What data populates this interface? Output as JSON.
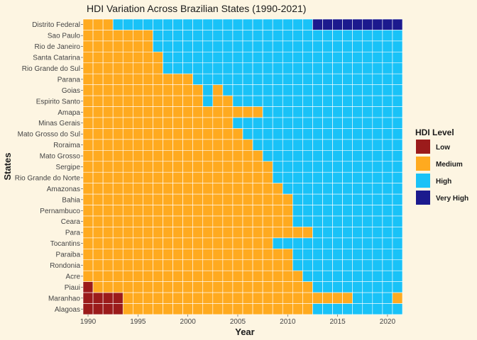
{
  "chart_data": {
    "type": "heatmap",
    "title": "HDI Variation Across Brazilian States (1990-2021)",
    "xlabel": "Year",
    "ylabel": "States",
    "x": [
      1990,
      1991,
      1992,
      1993,
      1994,
      1995,
      1996,
      1997,
      1998,
      1999,
      2000,
      2001,
      2002,
      2003,
      2004,
      2005,
      2006,
      2007,
      2008,
      2009,
      2010,
      2011,
      2012,
      2013,
      2014,
      2015,
      2016,
      2017,
      2018,
      2019,
      2020,
      2021
    ],
    "xticks": [
      1990,
      1995,
      2000,
      2005,
      2010,
      2015,
      2020
    ],
    "xlim": [
      1989.5,
      2021.5
    ],
    "grid": true,
    "legend": {
      "title": "HDI Level",
      "position": "right",
      "levels": [
        {
          "label": "Low",
          "color": "#9b1b1b"
        },
        {
          "label": "Medium",
          "color": "#ffaa1f"
        },
        {
          "label": "High",
          "color": "#19c2f7"
        },
        {
          "label": "Very High",
          "color": "#1c1a8e"
        }
      ]
    },
    "level_codes": {
      "L": "Low",
      "M": "Medium",
      "H": "High",
      "V": "Very High"
    },
    "states": [
      {
        "name": "Distrito Federal",
        "levels": "MMMHHHHHHHHHHHHHHHHHHHHVVVVVVVVV"
      },
      {
        "name": "Sao Paulo",
        "levels": "MMMMMMMHHHHHHHHHHHHHHHHHHHHHHHHH"
      },
      {
        "name": "Rio de Janeiro",
        "levels": "MMMMMMMHHHHHHHHHHHHHHHHHHHHHHHHH"
      },
      {
        "name": "Santa Catarina",
        "levels": "MMMMMMMMHHHHHHHHHHHHHHHHHHHHHHHH"
      },
      {
        "name": "Rio Grande do Sul",
        "levels": "MMMMMMMMHHHHHHHHHHHHHHHHHHHHHHHH"
      },
      {
        "name": "Parana",
        "levels": "MMMMMMMMMMMHHHHHHHHHHHHHHHHHHHHH"
      },
      {
        "name": "Goias",
        "levels": "MMMMMMMMMMMMHMHHHHHHHHHHHHHHHHHH"
      },
      {
        "name": "Espirito Santo",
        "levels": "MMMMMMMMMMMMHMMHHHHHHHHHHHHHHHHH"
      },
      {
        "name": "Amapa",
        "levels": "MMMMMMMMMMMMMMMMMMHHHHHHHHHHHHHH"
      },
      {
        "name": "Minas Gerais",
        "levels": "MMMMMMMMMMMMMMMHHHHHHHHHHHHHHHHH"
      },
      {
        "name": "Mato Grosso do Sul",
        "levels": "MMMMMMMMMMMMMMMMHHHHHHHHHHHHHHHH"
      },
      {
        "name": "Roraima",
        "levels": "MMMMMMMMMMMMMMMMMHHHHHHHHHHHHHHH"
      },
      {
        "name": "Mato Grosso",
        "levels": "MMMMMMMMMMMMMMMMMMHHHHHHHHHHHHHH"
      },
      {
        "name": "Sergipe",
        "levels": "MMMMMMMMMMMMMMMMMMMHHHHHHHHHHHHH"
      },
      {
        "name": "Rio Grande do Norte",
        "levels": "MMMMMMMMMMMMMMMMMMMHHHHHHHHHHHHH"
      },
      {
        "name": "Amazonas",
        "levels": "MMMMMMMMMMMMMMMMMMMMHHHHHHHHHHHH"
      },
      {
        "name": "Bahia",
        "levels": "MMMMMMMMMMMMMMMMMMMMMHHHHHHHHHHH"
      },
      {
        "name": "Pernambuco",
        "levels": "MMMMMMMMMMMMMMMMMMMMMHHHHHHHHHHH"
      },
      {
        "name": "Ceara",
        "levels": "MMMMMMMMMMMMMMMMMMMMMHHHHHHHHHHH"
      },
      {
        "name": "Para",
        "levels": "MMMMMMMMMMMMMMMMMMMMMMMHHHHHHHHH"
      },
      {
        "name": "Tocantins",
        "levels": "MMMMMMMMMMMMMMMMMMMHHHHHHHHHHHHH"
      },
      {
        "name": "Paraiba",
        "levels": "MMMMMMMMMMMMMMMMMMMMMHHHHHHHHHHH"
      },
      {
        "name": "Rondonia",
        "levels": "MMMMMMMMMMMMMMMMMMMMMHHHHHHHHHHH"
      },
      {
        "name": "Acre",
        "levels": "MMMMMMMMMMMMMMMMMMMMMMHHHHHHHHHH"
      },
      {
        "name": "Piaui",
        "levels": "LMMMMMMMMMMMMMMMMMMMMMMHHHHHHHHH"
      },
      {
        "name": "Maranhao",
        "levels": "LLLLMMMMMMMMMMMMMMMMMMMMMMMHHHHM"
      },
      {
        "name": "Alagoas",
        "levels": "LLLLMMMMMMMMMMMMMMMMMMMHHHHHHHHH"
      }
    ]
  }
}
